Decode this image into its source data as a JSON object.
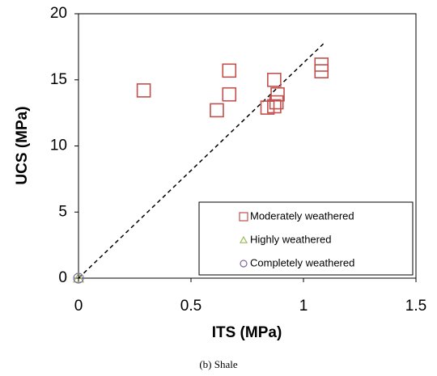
{
  "chart_data": {
    "type": "scatter",
    "caption": "(b) Shale",
    "x_label": "ITS (MPa)",
    "y_label": "UCS (MPa)",
    "xlim": [
      0,
      1.5
    ],
    "xticks": [
      0,
      0.5,
      1,
      1.5
    ],
    "ylim": [
      0,
      20
    ],
    "yticks": [
      0,
      5,
      10,
      15,
      20
    ],
    "series": [
      {
        "name": "Moderately weathered",
        "color": "#c0504d",
        "marker": "square",
        "x": [
          0.29,
          0.615,
          0.67,
          0.67,
          0.84,
          0.87,
          0.87,
          0.88,
          0.885,
          1.08,
          1.08
        ],
        "values": [
          14.2,
          12.7,
          15.7,
          13.9,
          12.9,
          15.0,
          13.0,
          13.3,
          13.9,
          16.15,
          15.65
        ]
      },
      {
        "name": "Highly weathered",
        "color": "#9bbb59",
        "marker": "triangle",
        "x": [
          0
        ],
        "values": [
          0
        ]
      },
      {
        "name": "Completely weathered",
        "color": "#8064a2",
        "marker": "circle",
        "x": [
          0
        ],
        "values": [
          0
        ]
      }
    ],
    "reference_line": {
      "x": [
        0,
        1.09
      ],
      "values": [
        0,
        17.75
      ],
      "style": "dashed",
      "color": "#000000"
    },
    "legend_position": "lower right"
  }
}
